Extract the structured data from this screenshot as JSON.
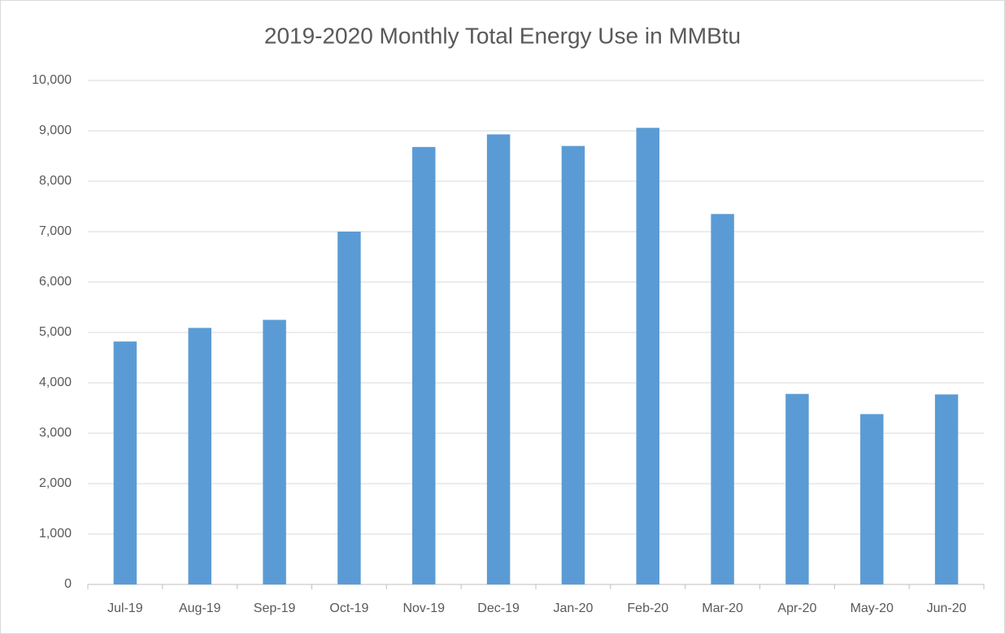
{
  "chart_data": {
    "type": "bar",
    "title": "2019-2020 Monthly Total Energy Use in MMBtu",
    "categories": [
      "Jul-19",
      "Aug-19",
      "Sep-19",
      "Oct-19",
      "Nov-19",
      "Dec-19",
      "Jan-20",
      "Feb-20",
      "Mar-20",
      "Apr-20",
      "May-20",
      "Jun-20"
    ],
    "values": [
      4820,
      5090,
      5250,
      7000,
      8680,
      8930,
      8700,
      9060,
      7350,
      3780,
      3380,
      3770
    ],
    "color": "#5b9bd5",
    "ylim": [
      0,
      10000
    ],
    "yticks": [
      0,
      {
        "value": 1000,
        "label": "1,000"
      },
      {
        "value": 2000,
        "label": "2,000"
      },
      {
        "value": 3000,
        "label": "3,000"
      },
      {
        "value": 4000,
        "label": "4,000"
      },
      {
        "value": 5000,
        "label": "5,000"
      },
      {
        "value": 6000,
        "label": "6,000"
      },
      {
        "value": 7000,
        "label": "7,000"
      },
      {
        "value": 8000,
        "label": "8,000"
      },
      {
        "value": 9000,
        "label": "9,000"
      },
      {
        "value": 10000,
        "label": "10,000"
      }
    ],
    "grid": true
  }
}
